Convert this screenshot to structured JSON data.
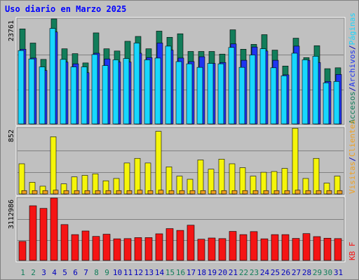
{
  "title": "Uso diario en Marzo 2025",
  "colors": {
    "accesos": "#127d5a",
    "archivos": "#1f35f0",
    "paginas": "#17d7ff",
    "visitas": "#f0a020",
    "clientes": "#f5f50a",
    "kbf": "#f51414",
    "weekend_day": "#127d5a",
    "weekday": "#0000bb"
  },
  "chart_data": [
    {
      "type": "bar",
      "panel": "top",
      "max_label": "23761",
      "ylim": [
        0,
        23761
      ],
      "days": [
        "1",
        "2",
        "3",
        "4",
        "5",
        "6",
        "7",
        "8",
        "9",
        "10",
        "11",
        "12",
        "13",
        "14",
        "15",
        "16",
        "17",
        "18",
        "19",
        "20",
        "21",
        "22",
        "23",
        "24",
        "25",
        "26",
        "27",
        "28",
        "29",
        "30",
        "31"
      ],
      "weekend_days": [
        "1",
        "2",
        "8",
        "9",
        "15",
        "16",
        "22",
        "23",
        "29",
        "30"
      ],
      "series": [
        {
          "name": "Accesos",
          "color_key": "accesos",
          "values": [
            21500,
            18300,
            14600,
            23761,
            17000,
            15900,
            13800,
            20600,
            17000,
            16500,
            18700,
            19800,
            17000,
            21000,
            19600,
            20400,
            16400,
            16400,
            16400,
            15800,
            21300,
            16900,
            18000,
            20200,
            16700,
            13100,
            19400,
            15000,
            17700,
            12500,
            12700
          ]
        },
        {
          "name": "Archivos",
          "color_key": "archivos",
          "values": [
            16900,
            14900,
            12100,
            20800,
            14000,
            13600,
            11600,
            16000,
            14700,
            14000,
            14000,
            16000,
            15000,
            18300,
            16700,
            14900,
            14100,
            15200,
            13700,
            13900,
            18100,
            14400,
            17400,
            16500,
            14400,
            11100,
            17600,
            14400,
            13900,
            9600,
            11200
          ]
        },
        {
          "name": "Páginas",
          "color_key": "paginas",
          "values": [
            16600,
            14700,
            12900,
            21600,
            14600,
            12900,
            12900,
            15700,
            13200,
            14500,
            14800,
            18300,
            14500,
            14900,
            17600,
            14100,
            13600,
            12800,
            13700,
            13600,
            17300,
            12800,
            15600,
            17000,
            12700,
            10900,
            16000,
            14500,
            15300,
            9300,
            9600
          ]
        }
      ]
    },
    {
      "type": "bar",
      "panel": "middle",
      "max_label": "852",
      "ylim": [
        0,
        852
      ],
      "series": [
        {
          "name": "Visitas",
          "color_key": "visitas",
          "values": [
            43,
            43,
            43,
            48,
            43,
            43,
            43,
            43,
            43,
            43,
            43,
            48,
            43,
            48,
            43,
            43,
            43,
            43,
            43,
            43,
            43,
            43,
            43,
            43,
            43,
            43,
            48,
            43,
            43,
            43,
            43
          ]
        },
        {
          "name": "Clientes",
          "color_key": "clientes",
          "values": [
            390,
            150,
            100,
            740,
            130,
            220,
            240,
            260,
            170,
            200,
            400,
            460,
            400,
            810,
            350,
            230,
            190,
            440,
            320,
            450,
            390,
            340,
            230,
            280,
            290,
            330,
            850,
            200,
            460,
            140,
            230
          ]
        }
      ]
    },
    {
      "type": "bar",
      "panel": "bottom",
      "max_label": "3112986",
      "ylim": [
        0,
        3112986
      ],
      "series": [
        {
          "name": "KB F",
          "color_key": "kbf",
          "values": [
            950000,
            2730000,
            2600000,
            3112986,
            1790000,
            1290000,
            1470000,
            1200000,
            1310000,
            1080000,
            1090000,
            1140000,
            1140000,
            1330000,
            1590000,
            1500000,
            1760000,
            1060000,
            1120000,
            1090000,
            1450000,
            1290000,
            1440000,
            1080000,
            1290000,
            1290000,
            1100000,
            1340000,
            1190000,
            1110000,
            1090000
          ]
        }
      ]
    }
  ],
  "right_labels": {
    "top": [
      {
        "text": "Accesos",
        "color_key": "accesos"
      },
      {
        "text": "/",
        "color_key": "weekday"
      },
      {
        "text": "Archivos",
        "color_key": "archivos"
      },
      {
        "text": "/",
        "color_key": "weekday"
      },
      {
        "text": "Páginas",
        "color_key": "paginas"
      }
    ],
    "middle": [
      {
        "text": "Visitas",
        "color_key": "visitas"
      },
      {
        "text": "/",
        "color_key": "weekday"
      },
      {
        "text": "Clientes",
        "color_key": "visitas"
      }
    ],
    "bottom": [
      {
        "text": "KB F",
        "color_key": "kbf"
      }
    ]
  }
}
